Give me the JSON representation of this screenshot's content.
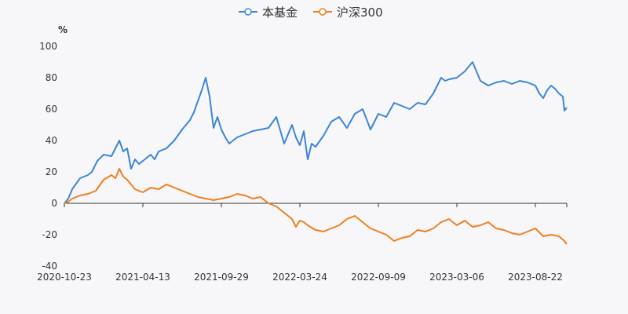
{
  "chart_data": {
    "type": "line",
    "title": "",
    "ylabel": "%",
    "xlabel": "",
    "ylim": [
      -40,
      100
    ],
    "yticks": [
      -40,
      -20,
      0,
      20,
      40,
      60,
      80,
      100
    ],
    "xticks": [
      "2020-10-23",
      "2021-04-13",
      "2021-09-29",
      "2022-03-24",
      "2022-09-09",
      "2023-03-06",
      "2023-08-22"
    ],
    "x_end_index": 6.4,
    "legend": {
      "position": "top-center"
    },
    "series": [
      {
        "name": "本基金",
        "color": "#3c86d8",
        "x": [
          0,
          0.05,
          0.1,
          0.2,
          0.3,
          0.35,
          0.42,
          0.5,
          0.6,
          0.7,
          0.75,
          0.8,
          0.85,
          0.9,
          0.95,
          1.0,
          1.05,
          1.1,
          1.15,
          1.2,
          1.3,
          1.4,
          1.5,
          1.6,
          1.65,
          1.7,
          1.75,
          1.8,
          1.85,
          1.9,
          1.95,
          2.0,
          2.05,
          2.1,
          2.2,
          2.3,
          2.4,
          2.5,
          2.6,
          2.7,
          2.8,
          2.9,
          2.95,
          3.0,
          3.05,
          3.1,
          3.15,
          3.2,
          3.3,
          3.4,
          3.5,
          3.6,
          3.7,
          3.8,
          3.9,
          4.0,
          4.1,
          4.2,
          4.3,
          4.4,
          4.5,
          4.6,
          4.7,
          4.8,
          4.85,
          4.9,
          5.0,
          5.1,
          5.2,
          5.3,
          5.4,
          5.5,
          5.6,
          5.7,
          5.8,
          5.9,
          6.0,
          6.05,
          6.1,
          6.15,
          6.2,
          6.25,
          6.3,
          6.35,
          6.37,
          6.4
        ],
        "values": [
          0,
          3,
          9,
          16,
          18,
          20,
          27,
          31,
          30,
          40,
          33,
          35,
          22,
          28,
          25,
          27,
          29,
          31,
          28,
          33,
          35,
          40,
          47,
          53,
          58,
          65,
          72,
          80,
          68,
          48,
          55,
          47,
          42,
          38,
          42,
          44,
          46,
          47,
          48,
          55,
          38,
          50,
          42,
          37,
          46,
          28,
          38,
          36,
          43,
          52,
          55,
          48,
          57,
          60,
          47,
          57,
          55,
          64,
          62,
          60,
          64,
          63,
          70,
          80,
          78,
          79,
          80,
          84,
          90,
          78,
          75,
          77,
          78,
          76,
          78,
          77,
          75,
          70,
          67,
          72,
          75,
          73,
          70,
          68,
          59,
          61
        ]
      },
      {
        "name": "沪深300",
        "color": "#f07f1f",
        "x": [
          0,
          0.05,
          0.1,
          0.2,
          0.3,
          0.4,
          0.5,
          0.6,
          0.65,
          0.7,
          0.75,
          0.8,
          0.9,
          1.0,
          1.1,
          1.2,
          1.3,
          1.4,
          1.5,
          1.6,
          1.7,
          1.8,
          1.9,
          2.0,
          2.1,
          2.2,
          2.3,
          2.4,
          2.5,
          2.6,
          2.7,
          2.8,
          2.9,
          2.95,
          3.0,
          3.05,
          3.1,
          3.2,
          3.3,
          3.4,
          3.5,
          3.6,
          3.7,
          3.8,
          3.9,
          4.0,
          4.1,
          4.2,
          4.3,
          4.4,
          4.5,
          4.6,
          4.7,
          4.8,
          4.9,
          5.0,
          5.1,
          5.2,
          5.3,
          5.4,
          5.5,
          5.6,
          5.7,
          5.8,
          5.9,
          6.0,
          6.1,
          6.2,
          6.3,
          6.37,
          6.4
        ],
        "values": [
          0,
          1,
          3,
          5,
          6,
          8,
          15,
          18,
          16,
          22,
          17,
          15,
          9,
          7,
          10,
          9,
          12,
          10,
          8,
          6,
          4,
          3,
          2,
          3,
          4,
          6,
          5,
          3,
          4,
          0,
          -2,
          -6,
          -10,
          -15,
          -11,
          -12,
          -14,
          -17,
          -18,
          -16,
          -14,
          -10,
          -8,
          -12,
          -16,
          -18,
          -20,
          -24,
          -22,
          -21,
          -17,
          -18,
          -16,
          -12,
          -10,
          -14,
          -11,
          -15,
          -14,
          -12,
          -16,
          -17,
          -19,
          -20,
          -18,
          -16,
          -21,
          -20,
          -21,
          -24,
          -26
        ]
      }
    ]
  }
}
